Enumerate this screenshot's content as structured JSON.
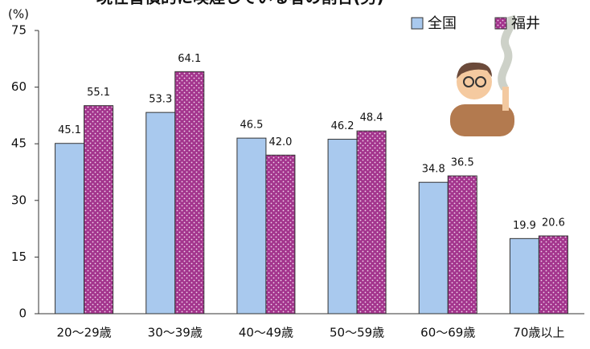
{
  "chart_data": {
    "type": "bar",
    "title": "現在習慣的に喫煙している者の割合(男)",
    "y_label": "(%)",
    "categories": [
      "20〜29歳",
      "30〜39歳",
      "40〜49歳",
      "50〜59歳",
      "60〜69歳",
      "70歳以上"
    ],
    "series": [
      {
        "name": "全国",
        "color": "#a9c9ee",
        "values": [
          45.1,
          53.3,
          46.5,
          46.2,
          34.8,
          19.9
        ],
        "value_labels": [
          "45.1",
          "53.3",
          "46.5",
          "46.2",
          "34.8",
          "19.9"
        ]
      },
      {
        "name": "福井",
        "color": "#a3358d",
        "values": [
          55.1,
          64.1,
          42.0,
          48.4,
          36.5,
          20.6
        ],
        "value_labels": [
          "55.1",
          "64.1",
          "42.0",
          "48.4",
          "36.5",
          "20.6"
        ]
      }
    ],
    "ylim": [
      0,
      75
    ],
    "yticks": [
      0,
      15,
      30,
      45,
      60,
      75
    ],
    "legend": "top-right"
  }
}
